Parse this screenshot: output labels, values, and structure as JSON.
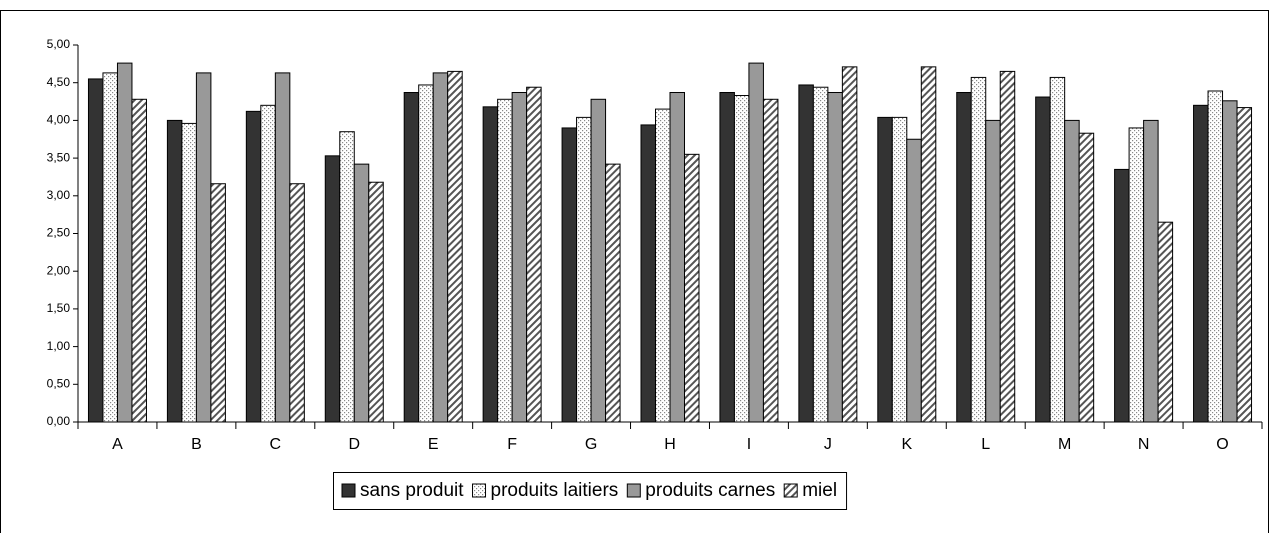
{
  "chart_data": {
    "type": "bar",
    "categories": [
      "A",
      "B",
      "C",
      "D",
      "E",
      "F",
      "G",
      "H",
      "I",
      "J",
      "K",
      "L",
      "M",
      "N",
      "O"
    ],
    "series": [
      {
        "name": "sans produit",
        "color": "#333333",
        "pattern": "solid",
        "values": [
          4.55,
          4.0,
          4.12,
          3.53,
          4.37,
          4.18,
          3.9,
          3.94,
          4.37,
          4.47,
          4.04,
          4.37,
          4.31,
          3.35,
          4.2
        ]
      },
      {
        "name": "produits laitiers",
        "color": "#ffffff",
        "pattern": "dots",
        "values": [
          4.63,
          3.96,
          4.2,
          3.85,
          4.47,
          4.28,
          4.04,
          4.15,
          4.33,
          4.44,
          4.04,
          4.57,
          4.57,
          3.9,
          4.39
        ]
      },
      {
        "name": "produits carnes",
        "color": "#999999",
        "pattern": "solid",
        "values": [
          4.76,
          4.63,
          4.63,
          3.42,
          4.63,
          4.37,
          4.28,
          4.37,
          4.76,
          4.37,
          3.75,
          4.0,
          4.0,
          4.0,
          4.26
        ]
      },
      {
        "name": "miel",
        "color": "#ffffff",
        "pattern": "hatch",
        "values": [
          4.28,
          3.16,
          3.16,
          3.18,
          4.65,
          4.44,
          3.42,
          3.55,
          4.28,
          4.71,
          4.71,
          4.65,
          3.83,
          2.65,
          4.17
        ]
      }
    ],
    "ylim": [
      0,
      5
    ],
    "yticks": [
      {
        "value": 0,
        "label": "0,00"
      },
      {
        "value": 0.5,
        "label": "0,50"
      },
      {
        "value": 1,
        "label": "1,00"
      },
      {
        "value": 1.5,
        "label": "1,50"
      },
      {
        "value": 2,
        "label": "2,00"
      },
      {
        "value": 2.5,
        "label": "2,50"
      },
      {
        "value": 3,
        "label": "3,00"
      },
      {
        "value": 3.5,
        "label": "3,50"
      },
      {
        "value": 4,
        "label": "4,00"
      },
      {
        "value": 4.5,
        "label": "4,50"
      },
      {
        "value": 5,
        "label": "5,00"
      }
    ],
    "grid": false,
    "legend": "bottom"
  }
}
